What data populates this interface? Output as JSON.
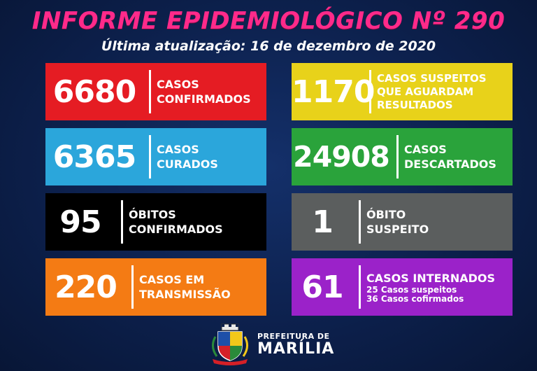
{
  "header": {
    "title": "INFORME EPIDEMIOLÓGICO Nº 290",
    "subtitle": "Última atualização: 16 de dezembro de 2020"
  },
  "cards": [
    {
      "value": "6680",
      "label_line1": "CASOS",
      "label_line2": "CONFIRMADOS",
      "color": "#e51c23"
    },
    {
      "value": "6365",
      "label_line1": "CASOS",
      "label_line2": "CURADOS",
      "color": "#2ba6db"
    },
    {
      "value": "95",
      "label_line1": "ÓBITOS",
      "label_line2": "CONFIRMADOS",
      "color": "#000000"
    },
    {
      "value": "220",
      "label_line1": "CASOS EM",
      "label_line2": "TRANSMISSÃO",
      "color": "#f47b14"
    },
    {
      "value": "1170",
      "label_line1": "CASOS SUSPEITOS",
      "label_line2": "QUE AGUARDAM",
      "label_line3": "RESULTADOS",
      "color": "#e8d21a"
    },
    {
      "value": "24908",
      "label_line1": "CASOS",
      "label_line2": "DESCARTADOS",
      "color": "#2aa33b"
    },
    {
      "value": "1",
      "label_line1": "ÓBITO",
      "label_line2": "SUSPEITO",
      "color": "#5b5e5e"
    },
    {
      "value": "61",
      "label_line1": "CASOS INTERNADOS",
      "detail_line1": "25 Casos suspeitos",
      "detail_line2": "36 Casos cofirmados",
      "color": "#9b22c9"
    }
  ],
  "footer": {
    "logo_icon": "coat-of-arms-icon",
    "org_line1": "PREFEITURA DE",
    "org_line2": "MARÍLIA"
  }
}
